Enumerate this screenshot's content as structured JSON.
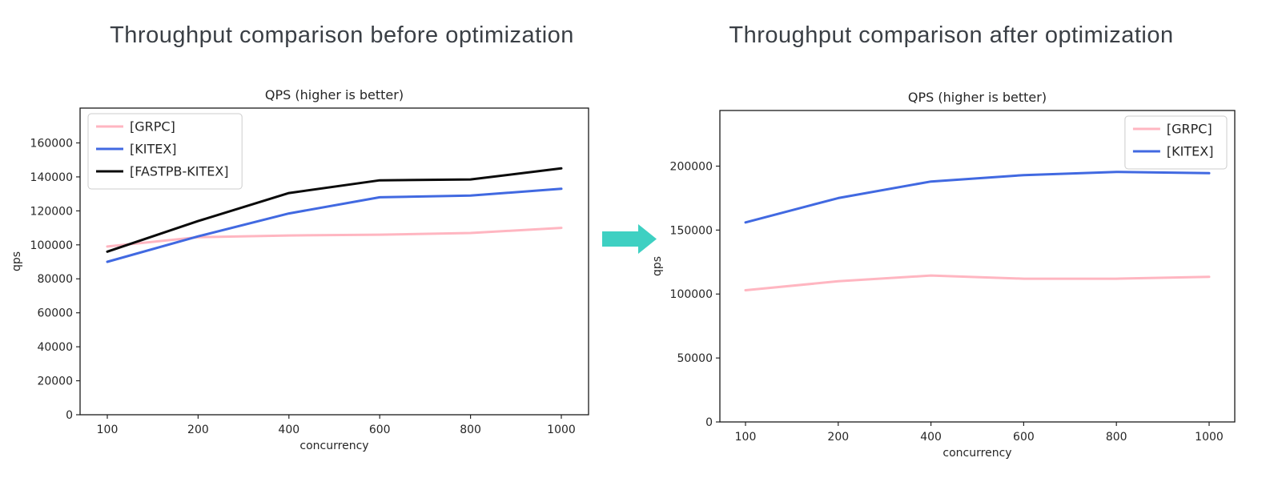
{
  "page": {
    "headings": [
      "Throughput comparison before optimization",
      "Throughput comparison after optimization"
    ],
    "arrow_icon": "right-block-arrow",
    "accent_arrow_color": "#3ed0c2",
    "heading_color": "#3a3f45"
  },
  "chart_data": [
    {
      "type": "line",
      "title": "QPS (higher is better)",
      "xlabel": "concurrency",
      "ylabel": "qps",
      "categories": [
        "100",
        "200",
        "400",
        "600",
        "800",
        "1000"
      ],
      "ylim": [
        0,
        180500
      ],
      "yticks": [
        0,
        20000,
        40000,
        60000,
        80000,
        100000,
        120000,
        140000,
        160000
      ],
      "grid": false,
      "legend_position": "top-left",
      "series": [
        {
          "name": "[GRPC]",
          "color": "#ffb6c1",
          "values": [
            99000,
            104500,
            105500,
            106000,
            107000,
            110000
          ]
        },
        {
          "name": "[KITEX]",
          "color": "#4169e1",
          "values": [
            90000,
            105000,
            118500,
            128000,
            129000,
            133000
          ]
        },
        {
          "name": "[FASTPB-KITEX]",
          "color": "#0a0a0a",
          "values": [
            96000,
            114000,
            130500,
            138000,
            138500,
            145000
          ]
        }
      ]
    },
    {
      "type": "line",
      "title": "QPS (higher is better)",
      "xlabel": "concurrency",
      "ylabel": "qps",
      "categories": [
        "100",
        "200",
        "400",
        "600",
        "800",
        "1000"
      ],
      "ylim": [
        0,
        243500
      ],
      "yticks": [
        0,
        50000,
        100000,
        150000,
        200000
      ],
      "grid": false,
      "legend_position": "top-right",
      "series": [
        {
          "name": "[GRPC]",
          "color": "#ffb6c1",
          "values": [
            103000,
            110000,
            114500,
            112000,
            112000,
            113500
          ]
        },
        {
          "name": "[KITEX]",
          "color": "#4169e1",
          "values": [
            156000,
            175000,
            188000,
            193000,
            195500,
            194500
          ]
        }
      ]
    }
  ]
}
